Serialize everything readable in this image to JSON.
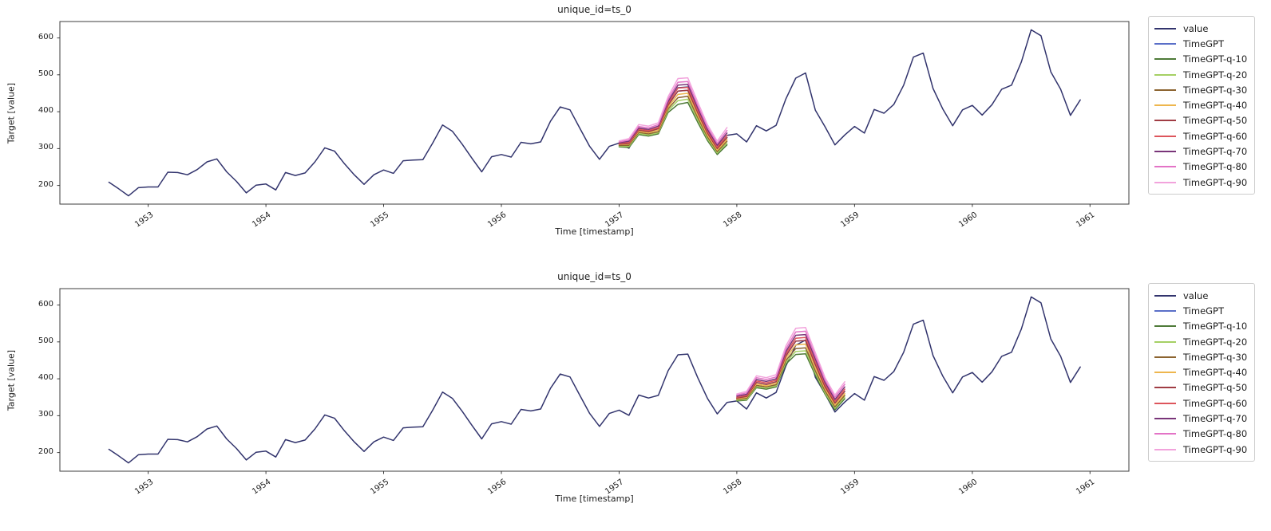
{
  "figure": {
    "background": "#ffffff",
    "spine_color": "#3c3c3c",
    "text_color": "#1c1c1c",
    "legend_border_color": "#cccccc"
  },
  "chart_data": [
    {
      "type": "line",
      "title": "unique_id=ts_0",
      "xlabel": "Time [timestamp]",
      "ylabel": "Target [value]",
      "xlim": [
        1952.25,
        1961.33
      ],
      "ylim": [
        149.5,
        644.5
      ],
      "xticks": [
        "1953",
        "1954",
        "1955",
        "1956",
        "1957",
        "1958",
        "1959",
        "1960",
        "1961"
      ],
      "yticks": [
        "200",
        "300",
        "400",
        "500",
        "600"
      ],
      "grid": false,
      "legend_position": "outside upper right",
      "series": [
        {
          "name": "value",
          "color": "#32346d",
          "x_start": 1952.6667,
          "x_step": 0.0833333,
          "values": [
            209,
            191,
            172,
            194,
            196,
            196,
            236,
            235,
            229,
            243,
            264,
            272,
            237,
            211,
            180,
            201,
            204,
            188,
            235,
            227,
            234,
            264,
            302,
            293,
            259,
            229,
            203,
            229,
            242,
            233,
            267,
            269,
            270,
            315,
            364,
            347,
            312,
            274,
            237,
            278,
            284,
            277,
            317,
            313,
            318,
            374,
            413,
            405,
            355,
            306,
            271,
            306,
            315,
            301,
            356,
            348,
            355,
            422,
            465,
            467,
            404,
            347,
            305,
            336,
            340,
            318,
            362,
            348,
            363,
            435,
            491,
            505,
            404,
            359,
            310,
            337,
            360,
            342,
            406,
            396,
            420,
            472,
            548,
            559,
            463,
            407,
            362,
            405,
            417,
            391,
            419,
            461,
            472,
            535,
            622,
            606,
            508,
            461,
            390,
            432
          ]
        },
        {
          "name": "TimeGPT",
          "color": "#5a6fc8",
          "x_start": 1957.0,
          "x_step": 0.0833333,
          "values": [
            312,
            314,
            350,
            346,
            354,
            418,
            456,
            458,
            398,
            342,
            300,
            330
          ]
        },
        {
          "name": "TimeGPT-q-10",
          "color": "#4e7a38",
          "x_start": 1957.0,
          "x_step": 0.0833333,
          "values": [
            305,
            303,
            338,
            334,
            340,
            398,
            420,
            425,
            372,
            322,
            284,
            310
          ]
        },
        {
          "name": "TimeGPT-q-20",
          "color": "#a5d064",
          "x_start": 1957.0,
          "x_step": 0.0833333,
          "values": [
            307,
            306,
            341,
            337,
            343,
            403,
            430,
            434,
            379,
            327,
            288,
            315
          ]
        },
        {
          "name": "TimeGPT-q-30",
          "color": "#8c6430",
          "x_start": 1957.0,
          "x_step": 0.0833333,
          "values": [
            309,
            309,
            344,
            340,
            346,
            408,
            438,
            442,
            385,
            332,
            292,
            320
          ]
        },
        {
          "name": "TimeGPT-q-40",
          "color": "#eeb64e",
          "x_start": 1957.0,
          "x_step": 0.0833333,
          "values": [
            311,
            312,
            347,
            343,
            350,
            413,
            447,
            450,
            391,
            337,
            296,
            325
          ]
        },
        {
          "name": "TimeGPT-q-50",
          "color": "#a03c44",
          "x_start": 1957.0,
          "x_step": 0.0833333,
          "values": [
            312,
            314,
            350,
            346,
            354,
            418,
            456,
            458,
            398,
            342,
            300,
            330
          ]
        },
        {
          "name": "TimeGPT-q-60",
          "color": "#dd555c",
          "x_start": 1957.0,
          "x_step": 0.0833333,
          "values": [
            314,
            317,
            353,
            349,
            357,
            423,
            464,
            466,
            404,
            347,
            304,
            336
          ]
        },
        {
          "name": "TimeGPT-q-70",
          "color": "#793579",
          "x_start": 1957.0,
          "x_step": 0.0833333,
          "values": [
            316,
            320,
            356,
            352,
            361,
            428,
            472,
            474,
            411,
            352,
            309,
            342
          ]
        },
        {
          "name": "TimeGPT-q-80",
          "color": "#e373c6",
          "x_start": 1957.0,
          "x_step": 0.0833333,
          "values": [
            318,
            323,
            360,
            356,
            365,
            434,
            480,
            482,
            418,
            358,
            314,
            349
          ]
        },
        {
          "name": "TimeGPT-q-90",
          "color": "#f2a3dc",
          "x_start": 1957.0,
          "x_step": 0.0833333,
          "values": [
            321,
            327,
            365,
            361,
            370,
            441,
            490,
            492,
            427,
            365,
            320,
            357
          ]
        }
      ]
    },
    {
      "type": "line",
      "title": "unique_id=ts_0",
      "xlabel": "Time [timestamp]",
      "ylabel": "Target [value]",
      "xlim": [
        1952.25,
        1961.33
      ],
      "ylim": [
        149.5,
        644.5
      ],
      "xticks": [
        "1953",
        "1954",
        "1955",
        "1956",
        "1957",
        "1958",
        "1959",
        "1960",
        "1961"
      ],
      "yticks": [
        "200",
        "300",
        "400",
        "500",
        "600"
      ],
      "grid": false,
      "legend_position": "outside upper right",
      "series": [
        {
          "name": "value",
          "color": "#32346d",
          "x_start": 1952.6667,
          "x_step": 0.0833333,
          "values": [
            209,
            191,
            172,
            194,
            196,
            196,
            236,
            235,
            229,
            243,
            264,
            272,
            237,
            211,
            180,
            201,
            204,
            188,
            235,
            227,
            234,
            264,
            302,
            293,
            259,
            229,
            203,
            229,
            242,
            233,
            267,
            269,
            270,
            315,
            364,
            347,
            312,
            274,
            237,
            278,
            284,
            277,
            317,
            313,
            318,
            374,
            413,
            405,
            355,
            306,
            271,
            306,
            315,
            301,
            356,
            348,
            355,
            422,
            465,
            467,
            404,
            347,
            305,
            336,
            340,
            318,
            362,
            348,
            363,
            435,
            491,
            505,
            404,
            359,
            310,
            337,
            360,
            342,
            406,
            396,
            420,
            472,
            548,
            559,
            463,
            407,
            362,
            405,
            417,
            391,
            419,
            461,
            472,
            535,
            622,
            606,
            508,
            461,
            390,
            432
          ]
        },
        {
          "name": "TimeGPT",
          "color": "#5a6fc8",
          "x_start": 1958.0,
          "x_step": 0.0833333,
          "values": [
            348,
            352,
            390,
            385,
            392,
            462,
            502,
            504,
            440,
            380,
            334,
            366
          ]
        },
        {
          "name": "TimeGPT-q-10",
          "color": "#4e7a38",
          "x_start": 1958.0,
          "x_step": 0.0833333,
          "values": [
            340,
            342,
            376,
            372,
            378,
            440,
            466,
            468,
            410,
            358,
            316,
            346
          ]
        },
        {
          "name": "TimeGPT-q-20",
          "color": "#a5d064",
          "x_start": 1958.0,
          "x_step": 0.0833333,
          "values": [
            342,
            344,
            379,
            375,
            381,
            445,
            474,
            476,
            416,
            362,
            320,
            350
          ]
        },
        {
          "name": "TimeGPT-q-30",
          "color": "#8c6430",
          "x_start": 1958.0,
          "x_step": 0.0833333,
          "values": [
            344,
            347,
            382,
            378,
            384,
            450,
            482,
            484,
            422,
            367,
            324,
            355
          ]
        },
        {
          "name": "TimeGPT-q-40",
          "color": "#eeb64e",
          "x_start": 1958.0,
          "x_step": 0.0833333,
          "values": [
            346,
            350,
            386,
            381,
            388,
            456,
            492,
            494,
            430,
            373,
            329,
            360
          ]
        },
        {
          "name": "TimeGPT-q-50",
          "color": "#a03c44",
          "x_start": 1958.0,
          "x_step": 0.0833333,
          "values": [
            348,
            352,
            390,
            385,
            392,
            462,
            502,
            504,
            438,
            378,
            334,
            366
          ]
        },
        {
          "name": "TimeGPT-q-60",
          "color": "#dd555c",
          "x_start": 1958.0,
          "x_step": 0.0833333,
          "values": [
            350,
            355,
            394,
            389,
            396,
            468,
            510,
            512,
            446,
            384,
            339,
            372
          ]
        },
        {
          "name": "TimeGPT-q-70",
          "color": "#793579",
          "x_start": 1958.0,
          "x_step": 0.0833333,
          "values": [
            353,
            358,
            398,
            393,
            400,
            474,
            518,
            520,
            454,
            390,
            344,
            378
          ]
        },
        {
          "name": "TimeGPT-q-80",
          "color": "#e373c6",
          "x_start": 1958.0,
          "x_step": 0.0833333,
          "values": [
            356,
            362,
            403,
            398,
            405,
            481,
            527,
            529,
            462,
            396,
            350,
            385
          ]
        },
        {
          "name": "TimeGPT-q-90",
          "color": "#f2a3dc",
          "x_start": 1958.0,
          "x_step": 0.0833333,
          "values": [
            359,
            366,
            408,
            403,
            411,
            489,
            537,
            539,
            471,
            403,
            356,
            392
          ]
        }
      ]
    }
  ]
}
